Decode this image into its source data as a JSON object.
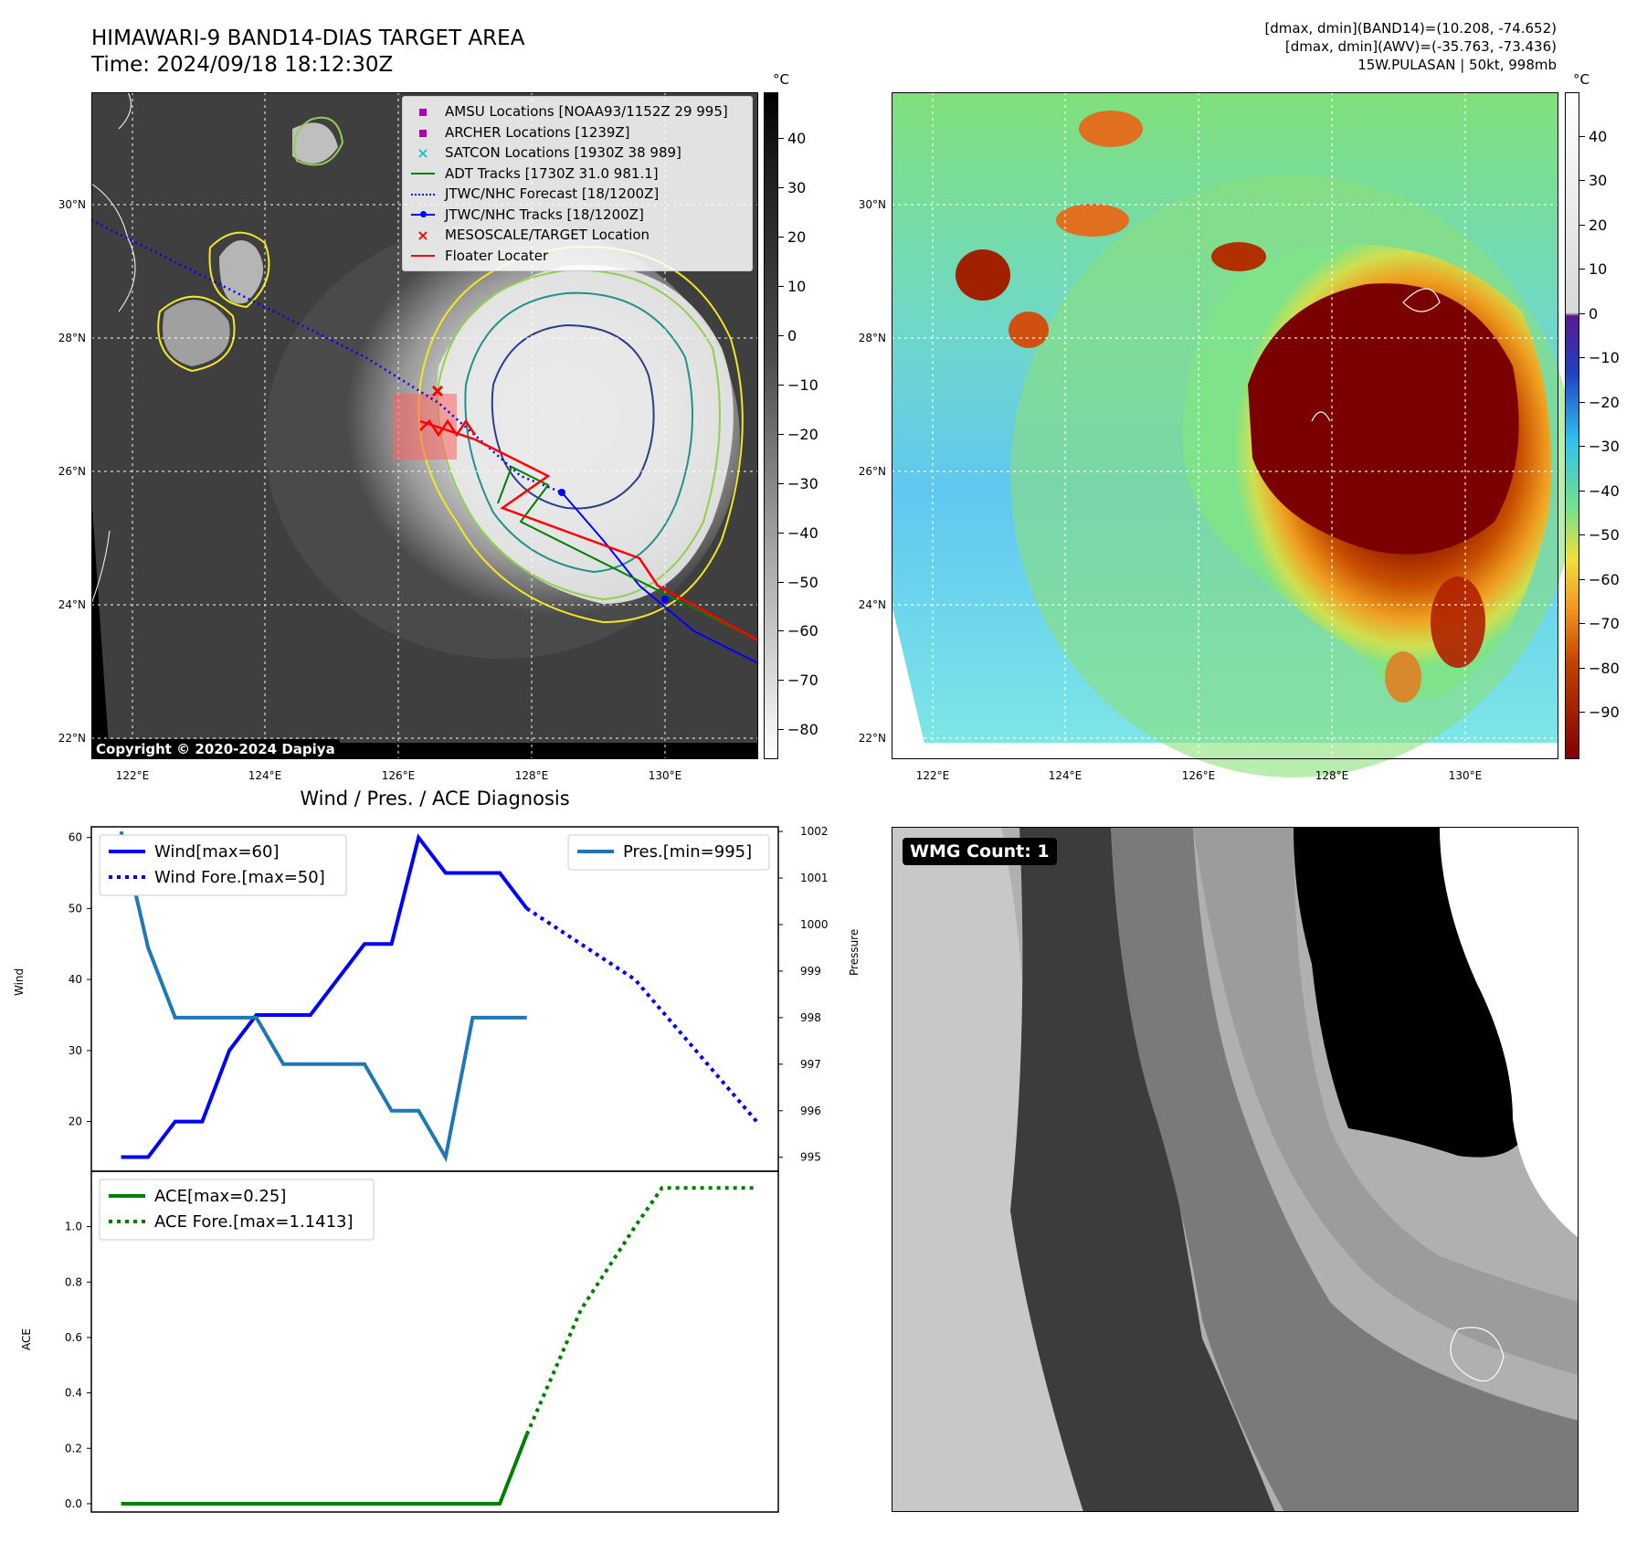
{
  "header": {
    "title_line1": "HIMAWARI-9 BAND14-DIAS TARGET AREA",
    "title_line2": "Time: 2024/09/18 18:12:30Z",
    "info_line1": "[dmax, dmin](BAND14)=(10.208, -74.652)",
    "info_line2": "[dmax, dmin](AWV)=(-35.763, -73.436)",
    "info_line3": "15W.PULASAN | 50kt, 998mb"
  },
  "map_axes": {
    "lat_labels": [
      "30°N",
      "28°N",
      "26°N",
      "24°N",
      "22°N"
    ],
    "lon_labels": [
      "122°E",
      "124°E",
      "126°E",
      "128°E",
      "130°E"
    ]
  },
  "colorbar_left": {
    "unit": "°C",
    "ticks": [
      "40",
      "30",
      "20",
      "10",
      "0",
      "−10",
      "−20",
      "−30",
      "−40",
      "−50",
      "−60",
      "−70",
      "−80"
    ]
  },
  "colorbar_right": {
    "unit": "°C",
    "ticks": [
      "40",
      "30",
      "20",
      "10",
      "0",
      "−10",
      "−20",
      "−30",
      "−40",
      "−50",
      "−60",
      "−70",
      "−80",
      "−90"
    ]
  },
  "map_legend": [
    {
      "label": "AMSU Locations [NOAA93/1152Z 29 995]",
      "marker": "square",
      "color": "#b000b0"
    },
    {
      "label": "ARCHER Locations [1239Z]",
      "marker": "square",
      "color": "#b000b0"
    },
    {
      "label": "SATCON Locations [1930Z 38 989]",
      "marker": "x",
      "color": "#17becf"
    },
    {
      "label": "ADT Tracks [1730Z 31.0 981.1]",
      "marker": "line",
      "color": "#008000"
    },
    {
      "label": "JTWC/NHC Forecast [18/1200Z]",
      "marker": "dotted",
      "color": "#0000ff"
    },
    {
      "label": "JTWC/NHC Tracks [18/1200Z]",
      "marker": "dotline",
      "color": "#0000ff"
    },
    {
      "label": "MESOSCALE/TARGET Location",
      "marker": "x",
      "color": "#ff0000"
    },
    {
      "label": "Floater Locater",
      "marker": "line",
      "color": "#ff0000"
    }
  ],
  "copyright": "Copyright © 2020-2024 Dapiya",
  "wmg_label": "WMG Count: 1",
  "chart_data": [
    {
      "type": "line",
      "title": "Wind / Pres. / ACE Diagnosis",
      "ylabel": "Wind",
      "ylabel_right": "Pressure",
      "ylim": [
        13,
        61.5
      ],
      "ylim_right": [
        994.7,
        1002.1
      ],
      "yticks": [
        20,
        30,
        40,
        50,
        60
      ],
      "yticks_right": [
        995,
        996,
        997,
        998,
        999,
        1000,
        1001,
        1002
      ],
      "series": [
        {
          "name": "Wind[max=60]",
          "color": "#0000ff",
          "style": "solid",
          "x": [
            0,
            1,
            2,
            3,
            4,
            5,
            6,
            7,
            8,
            9,
            10,
            11,
            12,
            13,
            14,
            15
          ],
          "values": [
            15,
            15,
            20,
            20,
            30,
            35,
            35,
            35,
            40,
            45,
            45,
            60,
            55,
            55,
            55,
            50
          ]
        },
        {
          "name": "Wind Fore.[max=50]",
          "color": "#0000ff",
          "style": "dotted",
          "x": [
            15,
            19,
            23.5
          ],
          "values": [
            50,
            40,
            20
          ]
        },
        {
          "name": "Pres.[min=995]",
          "color": "#1f77b4",
          "style": "solid",
          "axis": "right",
          "x": [
            0,
            1,
            2,
            3,
            4,
            5,
            6,
            7,
            8,
            9,
            10,
            11,
            12,
            13,
            14,
            15
          ],
          "values": [
            1002,
            999.5,
            998,
            998,
            998,
            998,
            997,
            997,
            997,
            997,
            996,
            996,
            995,
            998,
            998,
            998
          ]
        }
      ]
    },
    {
      "type": "line",
      "ylabel": "ACE",
      "ylim": [
        -0.03,
        1.2
      ],
      "yticks": [
        0.0,
        0.2,
        0.4,
        0.6,
        0.8,
        1.0
      ],
      "ytick_labels": [
        "0.0",
        "0.2",
        "0.4",
        "0.6",
        "0.8",
        "1.0"
      ],
      "series": [
        {
          "name": "ACE[max=0.25]",
          "color": "#008000",
          "style": "solid",
          "x": [
            0,
            14,
            15
          ],
          "values": [
            0,
            0,
            0.25
          ]
        },
        {
          "name": "ACE Fore.[max=1.1413]",
          "color": "#008000",
          "style": "dotted",
          "x": [
            15,
            17,
            19,
            20,
            23.5
          ],
          "values": [
            0.25,
            0.7,
            1.0,
            1.14,
            1.14
          ]
        }
      ]
    }
  ]
}
